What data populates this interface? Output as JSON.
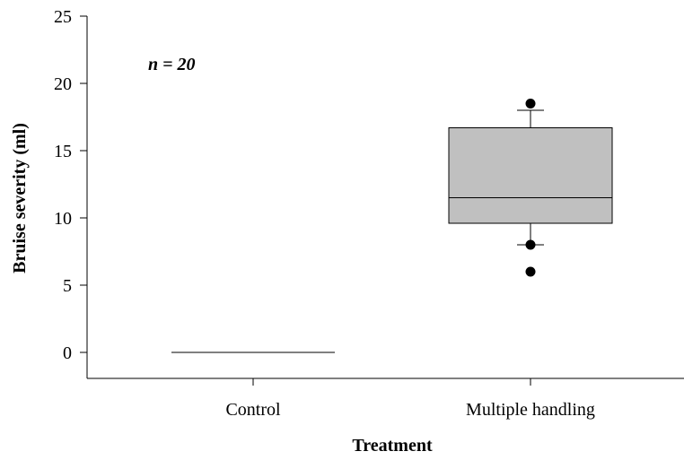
{
  "chart_data": {
    "type": "box",
    "title": "",
    "xlabel": "Treatment",
    "ylabel": "Bruise severity (ml)",
    "ylim": [
      -2,
      25
    ],
    "yticks": [
      0,
      5,
      10,
      15,
      20,
      25
    ],
    "categories": [
      "Control",
      "Multiple handling"
    ],
    "annotation": "n = 20",
    "box_fill": "#c0c0c0",
    "boxes": [
      {
        "category": "Control",
        "whisker_low": 0,
        "q1": 0,
        "median": 0,
        "q3": 0,
        "whisker_high": 0,
        "outliers": []
      },
      {
        "category": "Multiple handling",
        "whisker_low": 8,
        "q1": 9.6,
        "median": 11.5,
        "q3": 16.7,
        "whisker_high": 18,
        "outliers": [
          8,
          6,
          18.5
        ]
      }
    ]
  }
}
